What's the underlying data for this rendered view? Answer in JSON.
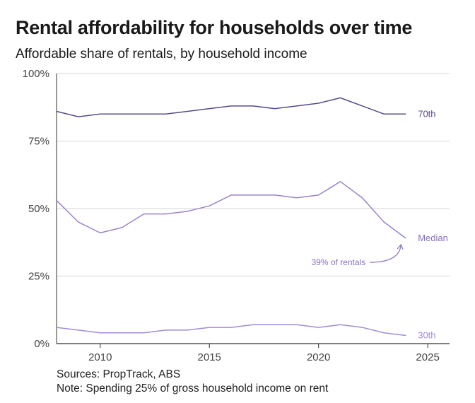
{
  "title": "Rental affordability for households over time",
  "subtitle": "Affordable share of rentals, by household income",
  "footer": {
    "sources": "Sources: PropTrack, ABS",
    "note": "Note: Spending 25% of gross household income on rent"
  },
  "colors": {
    "line_70th": "#5a4a8a",
    "line_median": "#9b82cc",
    "line_30th": "#a08cd4",
    "label_70th": "#5a4a8a",
    "label_median": "#8a6fc0",
    "grid": "#d6d6d6",
    "axis": "#333333"
  },
  "chart_data": {
    "type": "line",
    "title": "Rental affordability for households over time",
    "subtitle": "Affordable share of rentals, by household income",
    "xlabel": "",
    "ylabel": "",
    "xlim": [
      2008,
      2026
    ],
    "ylim": [
      0,
      100
    ],
    "x_ticks": [
      2010,
      2015,
      2020,
      2025
    ],
    "x_tick_labels": [
      "2010",
      "2015",
      "2020",
      "2025"
    ],
    "y_ticks": [
      0,
      25,
      50,
      75,
      100
    ],
    "y_tick_labels": [
      "0%",
      "25%",
      "50%",
      "75%",
      "100%"
    ],
    "grid": true,
    "x": [
      2008,
      2009,
      2010,
      2011,
      2012,
      2013,
      2014,
      2015,
      2016,
      2017,
      2018,
      2019,
      2020,
      2021,
      2022,
      2023,
      2024
    ],
    "series": [
      {
        "name": "70th",
        "label": "70th",
        "color_key": "line_70th",
        "values": [
          86,
          84,
          85,
          85,
          85,
          85,
          86,
          87,
          88,
          88,
          87,
          88,
          89,
          91,
          88,
          85,
          85
        ]
      },
      {
        "name": "Median",
        "label": "Median",
        "color_key": "line_median",
        "values": [
          53,
          45,
          41,
          43,
          48,
          48,
          49,
          51,
          55,
          55,
          55,
          54,
          55,
          60,
          54,
          45,
          39
        ]
      },
      {
        "name": "30th",
        "label": "30th",
        "color_key": "line_30th",
        "values": [
          6,
          5,
          4,
          4,
          4,
          5,
          5,
          6,
          6,
          7,
          7,
          7,
          6,
          7,
          6,
          4,
          3
        ]
      }
    ],
    "annotations": [
      {
        "text": "39% of rentals",
        "series": "Median",
        "x": 2024,
        "y": 39
      }
    ]
  }
}
